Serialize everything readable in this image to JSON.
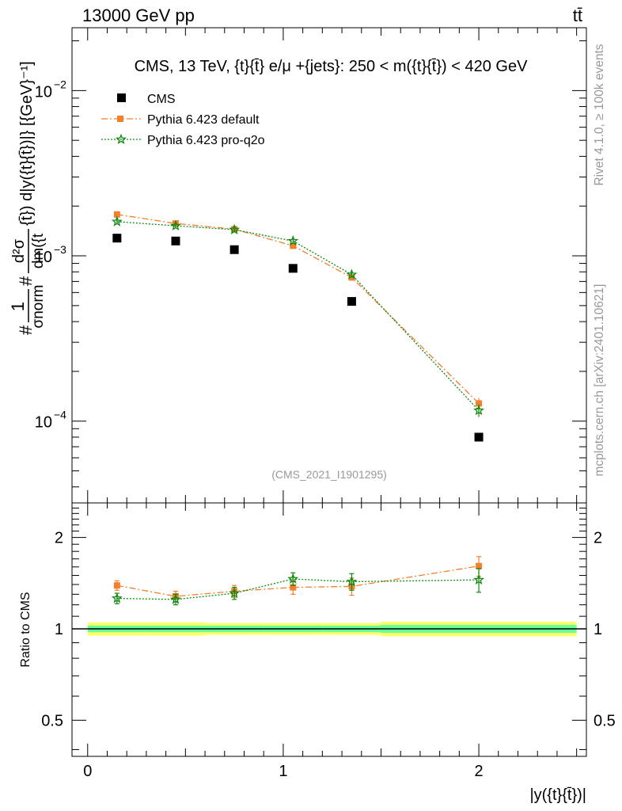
{
  "header": {
    "left": "13000 GeV pp",
    "right": "tt̄"
  },
  "side_labels": {
    "rivet": "Rivet 4.1.0, ≥ 100k events",
    "source": "mcplots.cern.ch [arXiv:2401.10621]"
  },
  "chart_data": [
    {
      "panel": "main",
      "type": "scatter",
      "title": "CMS, 13 TeV, {t}{t̄} e/μ +{jets}: 250 < m({t}{t̄}) < 420 GeV",
      "analysis_id": "(CMS_2021_I1901295)",
      "xlabel": "|y({t}{t̄})|",
      "ylabel": {
        "prefix": "#",
        "one": "1",
        "sigma_norm": "σnorm",
        "num": "d²σ",
        "den": "dm({t",
        "rest": "{t̄}) d|y({t}{t̄})|} [{GeV}⁻¹]"
      },
      "xlim": [
        -0.08,
        2.55
      ],
      "ylim": [
        3.2e-05,
        0.024
      ],
      "yscale": "log",
      "yticks": [
        {
          "value": 0.0001,
          "base": "10",
          "exp": "−4"
        },
        {
          "value": 0.001,
          "base": "10",
          "exp": "−3"
        },
        {
          "value": 0.01,
          "base": "10",
          "exp": "−2"
        }
      ],
      "x": [
        0.15,
        0.45,
        0.75,
        1.05,
        1.35,
        2.0
      ],
      "series": [
        {
          "name": "CMS",
          "color": "#000000",
          "marker": "square",
          "values": [
            0.00128,
            0.00123,
            0.00109,
            0.00084,
            0.00053,
            8e-05
          ]
        },
        {
          "name": "Pythia 6.423 default",
          "color": "#f47f2c",
          "marker": "filled-square",
          "line": "dash-dot",
          "values": [
            0.00178,
            0.00157,
            0.00145,
            0.00115,
            0.00074,
            0.000128
          ],
          "errors": [
            7e-05,
            5e-05,
            5e-05,
            4e-05,
            3e-05,
            1e-05
          ]
        },
        {
          "name": "Pythia 6.423 pro-q2o",
          "color": "#118811",
          "marker": "star",
          "line": "dotted",
          "values": [
            0.00161,
            0.00152,
            0.00144,
            0.00123,
            0.00077,
            0.000116
          ],
          "errors": [
            6e-05,
            5e-05,
            5e-05,
            4e-05,
            3e-05,
            1e-05
          ]
        }
      ]
    },
    {
      "panel": "ratio",
      "type": "scatter",
      "ylabel": "Ratio to CMS",
      "xlabel": "|y({t}{t̄})|",
      "xlim": [
        -0.08,
        2.55
      ],
      "ylim": [
        0.38,
        2.6
      ],
      "yscale": "log",
      "xticks": [
        {
          "value": 0,
          "label": "0"
        },
        {
          "value": 1,
          "label": "1"
        },
        {
          "value": 2,
          "label": "2"
        }
      ],
      "yticks": [
        {
          "value": 0.5,
          "label": "0.5"
        },
        {
          "value": 1,
          "label": "1"
        },
        {
          "value": 2,
          "label": "2"
        }
      ],
      "x": [
        0.15,
        0.45,
        0.75,
        1.05,
        1.35,
        2.0
      ],
      "band": {
        "edges": [
          0,
          0.3,
          0.6,
          0.9,
          1.2,
          1.5,
          2.5
        ],
        "inner_low": [
          0.975,
          0.975,
          0.975,
          0.975,
          0.975,
          0.97
        ],
        "inner_high": [
          1.025,
          1.025,
          1.025,
          1.025,
          1.025,
          1.03
        ],
        "outer_low": [
          0.95,
          0.95,
          0.955,
          0.955,
          0.955,
          0.945
        ],
        "outer_high": [
          1.05,
          1.05,
          1.045,
          1.045,
          1.045,
          1.055
        ],
        "inner_color": "#66ff99",
        "outer_color": "#ffff66"
      },
      "series": [
        {
          "name": "Pythia 6.423 default",
          "color": "#f47f2c",
          "marker": "filled-square",
          "line": "dash-dot",
          "values": [
            1.39,
            1.28,
            1.33,
            1.37,
            1.38,
            1.61
          ],
          "errors": [
            0.05,
            0.05,
            0.06,
            0.07,
            0.09,
            0.12
          ]
        },
        {
          "name": "Pythia 6.423 pro-q2o",
          "color": "#118811",
          "marker": "star",
          "line": "dotted",
          "values": [
            1.26,
            1.25,
            1.31,
            1.46,
            1.43,
            1.45
          ],
          "errors": [
            0.05,
            0.05,
            0.06,
            0.07,
            0.09,
            0.13
          ]
        }
      ]
    }
  ]
}
